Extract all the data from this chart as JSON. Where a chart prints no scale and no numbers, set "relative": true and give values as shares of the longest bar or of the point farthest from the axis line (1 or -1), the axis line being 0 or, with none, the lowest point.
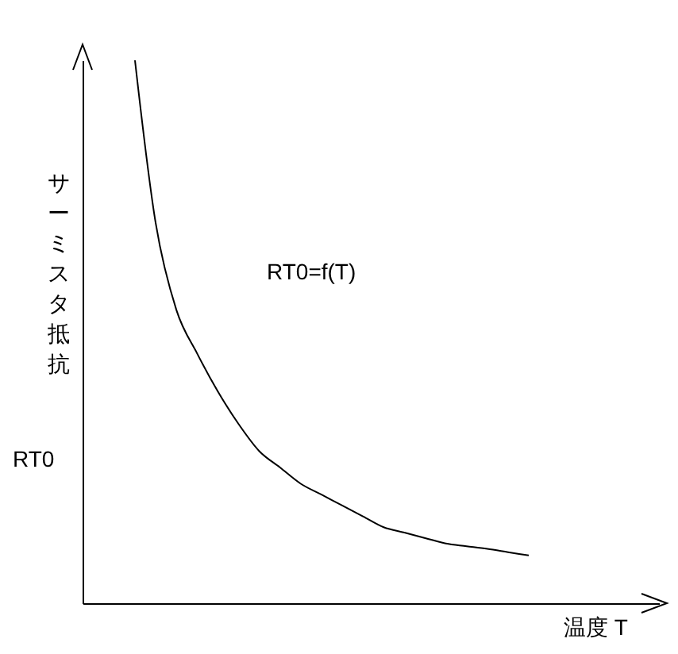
{
  "chart_data": {
    "type": "line",
    "relative": true,
    "xlabel": "温度 T",
    "ylabel": "サーミスタ抵抗",
    "annotations": [
      "RT0"
    ],
    "categories": [
      null,
      null,
      null,
      null,
      null,
      null,
      null,
      null,
      null,
      null,
      null,
      null,
      null,
      null,
      null,
      null,
      null,
      null,
      null,
      null
    ],
    "series": [
      {
        "name": "RT0=f(T)",
        "color": "#000000",
        "values": [
          1,
          0.7,
          0.54,
          0.46,
          0.39,
          0.33,
          0.28,
          0.25,
          0.22,
          0.2,
          0.18,
          0.16,
          0.14,
          0.13,
          0.12,
          0.11,
          0.105,
          0.1,
          0.094,
          0.088
        ]
      }
    ],
    "grid": false,
    "legend": false,
    "marker": "none",
    "line_style": "solid"
  }
}
